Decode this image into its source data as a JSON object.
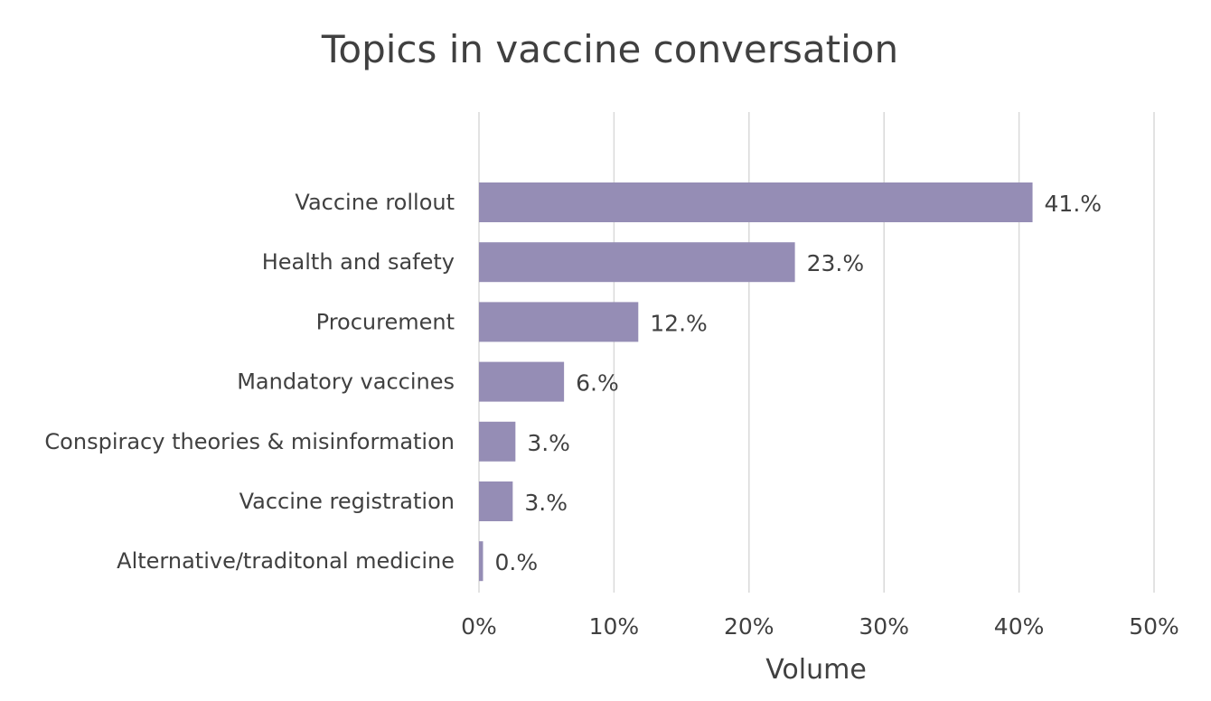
{
  "chart_data": {
    "type": "bar",
    "orientation": "horizontal",
    "title": "Topics in vaccine conversation",
    "xlabel": "Volume",
    "ylabel": "",
    "categories": [
      "Vaccine rollout",
      "Health and safety",
      "Procurement",
      "Mandatory vaccines",
      "Conspiracy theories & misinformation",
      "Vaccine registration",
      "Alternative/traditonal medicine"
    ],
    "values": [
      41,
      23.4,
      11.8,
      6.3,
      2.7,
      2.5,
      0.3
    ],
    "data_labels": [
      "41.%",
      "23.%",
      "12.%",
      "6.%",
      "3.%",
      "3.%",
      "0.%"
    ],
    "xlim": [
      0,
      50
    ],
    "xticks": [
      0,
      10,
      20,
      30,
      40,
      50
    ],
    "xtick_labels": [
      "0%",
      "10%",
      "20%",
      "30%",
      "40%",
      "50%"
    ],
    "grid": "vertical",
    "legend": "none",
    "colors": {
      "bar": "#958db5",
      "grid": "#d9d9d9",
      "text": "#404040"
    }
  }
}
